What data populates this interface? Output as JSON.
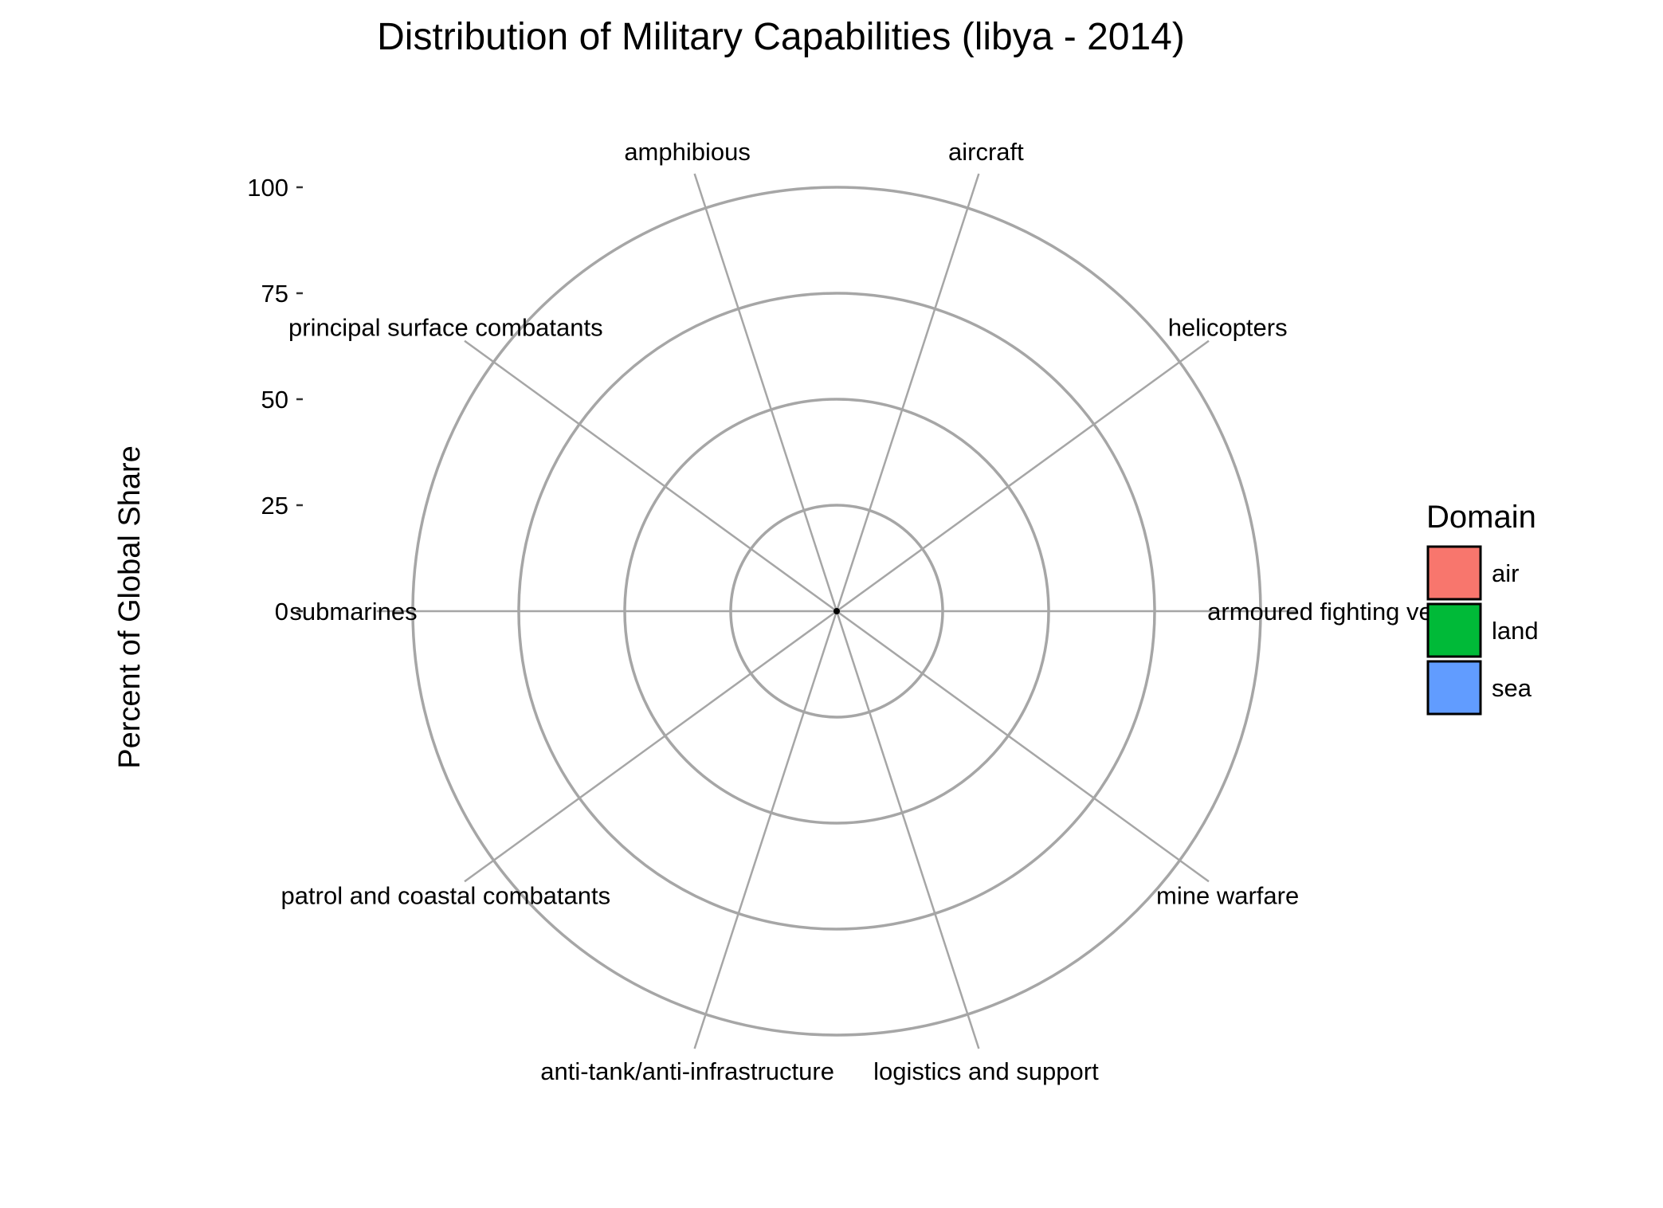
{
  "chart_data": {
    "type": "radar",
    "title": "Distribution of Military Capabilities (libya - 2014)",
    "ylabel": "Percent of Global Share",
    "ylim": [
      0,
      100
    ],
    "yticks": [
      0,
      25,
      50,
      75,
      100
    ],
    "yticks_labels": [
      "0",
      "25",
      "50",
      "75",
      "100"
    ],
    "categories": [
      {
        "name": "aircraft",
        "domain": "air",
        "value": 0
      },
      {
        "name": "helicopters",
        "domain": "air",
        "value": 0
      },
      {
        "name": "armoured fighting ve",
        "domain": "land",
        "value": 0
      },
      {
        "name": "mine warfare",
        "domain": "sea",
        "value": 0
      },
      {
        "name": "logistics and support",
        "domain": "sea",
        "value": 0
      },
      {
        "name": "anti-tank/anti-infrastructure",
        "domain": "land",
        "value": 0
      },
      {
        "name": "patrol and coastal combatants",
        "domain": "sea",
        "value": 0
      },
      {
        "name": "submarines",
        "domain": "sea",
        "value": 0
      },
      {
        "name": "principal surface combatants",
        "domain": "sea",
        "value": 0
      },
      {
        "name": "amphibious",
        "domain": "sea",
        "value": 0
      }
    ],
    "grid": true,
    "legend": {
      "title": "Domain",
      "position": "right",
      "entries": [
        {
          "label": "air",
          "color": "#F8766D"
        },
        {
          "label": "land",
          "color": "#00BA38"
        },
        {
          "label": "sea",
          "color": "#619CFF"
        }
      ]
    }
  }
}
